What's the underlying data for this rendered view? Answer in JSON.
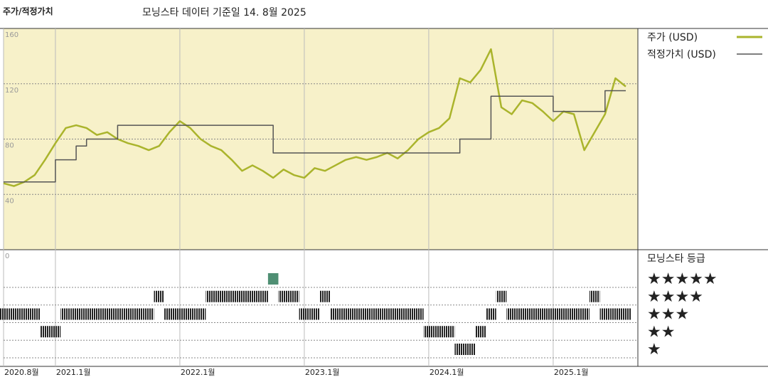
{
  "chart_data": {
    "type": "line",
    "title": "주가/적정가치",
    "subtitle": "모닝스타 데이터 기준일 14. 8월 2025",
    "x": [
      "2020-08",
      "2020-09",
      "2020-10",
      "2020-11",
      "2020-12",
      "2021-01",
      "2021-02",
      "2021-03",
      "2021-04",
      "2021-05",
      "2021-06",
      "2021-07",
      "2021-08",
      "2021-09",
      "2021-10",
      "2021-11",
      "2021-12",
      "2022-01",
      "2022-02",
      "2022-03",
      "2022-04",
      "2022-05",
      "2022-06",
      "2022-07",
      "2022-08",
      "2022-09",
      "2022-10",
      "2022-11",
      "2022-12",
      "2023-01",
      "2023-02",
      "2023-03",
      "2023-04",
      "2023-05",
      "2023-06",
      "2023-07",
      "2023-08",
      "2023-09",
      "2023-10",
      "2023-11",
      "2023-12",
      "2024-01",
      "2024-02",
      "2024-03",
      "2024-04",
      "2024-05",
      "2024-06",
      "2024-07",
      "2024-08",
      "2024-09",
      "2024-10",
      "2024-11",
      "2024-12",
      "2025-01",
      "2025-02",
      "2025-03",
      "2025-04",
      "2025-05",
      "2025-06",
      "2025-07",
      "2025-08"
    ],
    "xticks": [
      {
        "value": "2020-08",
        "label": "2020.8월"
      },
      {
        "value": "2021-01",
        "label": "2021.1월"
      },
      {
        "value": "2022-01",
        "label": "2022.1월"
      },
      {
        "value": "2023-01",
        "label": "2023.1월"
      },
      {
        "value": "2024-01",
        "label": "2024.1월"
      },
      {
        "value": "2025-01",
        "label": "2025.1월"
      }
    ],
    "series": [
      {
        "name": "주가 (USD)",
        "color": "#aab42c",
        "step": false,
        "values": [
          48,
          46,
          49,
          54,
          65,
          77,
          88,
          90,
          88,
          83,
          85,
          80,
          77,
          75,
          72,
          75,
          85,
          93,
          88,
          80,
          75,
          72,
          65,
          57,
          61,
          57,
          52,
          58,
          54,
          52,
          59,
          57,
          61,
          65,
          67,
          65,
          67,
          70,
          66,
          72,
          80,
          85,
          88,
          95,
          124,
          121,
          130,
          145,
          103,
          98,
          108,
          106,
          100,
          93,
          100,
          98,
          72,
          85,
          98,
          124,
          118
        ]
      },
      {
        "name": "적정가치 (USD)",
        "color": "#555555",
        "step": true,
        "values": [
          49,
          49,
          49,
          49,
          49,
          65,
          65,
          75,
          80,
          80,
          80,
          90,
          90,
          90,
          90,
          90,
          90,
          90,
          90,
          90,
          90,
          90,
          90,
          90,
          90,
          90,
          70,
          70,
          70,
          70,
          70,
          70,
          70,
          70,
          70,
          70,
          70,
          70,
          70,
          70,
          70,
          70,
          70,
          70,
          80,
          80,
          80,
          111,
          111,
          111,
          111,
          111,
          111,
          100,
          100,
          100,
          100,
          100,
          115,
          115,
          115
        ]
      }
    ],
    "ylim": [
      0,
      160
    ],
    "yticks": [
      0,
      40,
      80,
      120,
      160
    ],
    "grid": true,
    "rating": {
      "name": "모닝스타 등급",
      "color": "#222222",
      "top_color": "#4f8f73",
      "levels": [
        {
          "value": 5,
          "label": "★★★★★"
        },
        {
          "value": 4,
          "label": "★★★★"
        },
        {
          "value": 3,
          "label": "★★★"
        },
        {
          "value": 2,
          "label": "★★"
        },
        {
          "value": 1,
          "label": "★"
        }
      ],
      "values": [
        3,
        3,
        3,
        3,
        2,
        2,
        3,
        3,
        3,
        3,
        3,
        3,
        3,
        3,
        3,
        4,
        3,
        3,
        3,
        3,
        4,
        4,
        4,
        4,
        4,
        4,
        5,
        4,
        4,
        3,
        3,
        4,
        3,
        3,
        3,
        3,
        3,
        3,
        3,
        3,
        3,
        2,
        2,
        2,
        1,
        1,
        2,
        3,
        4,
        3,
        3,
        3,
        3,
        3,
        3,
        3,
        3,
        4,
        3,
        3,
        3
      ]
    }
  }
}
